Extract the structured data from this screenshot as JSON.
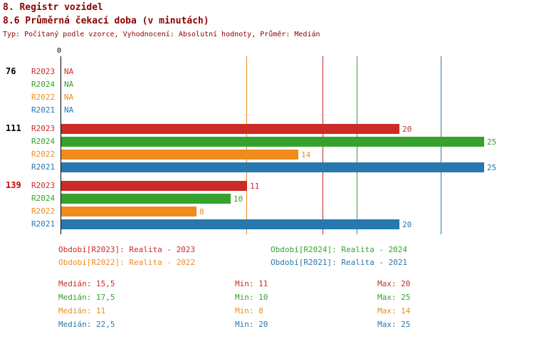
{
  "colors": {
    "title": "#8b0000",
    "axis": "#000000",
    "group_default": "#000000",
    "group_alert": "#cc0000"
  },
  "chart_data": {
    "type": "bar",
    "orientation": "horizontal",
    "title": "8. Registr vozidel",
    "subtitle": "8.6 Průměrná čekací doba (v minutách)",
    "meta": "Typ: Počítaný podle vzorce, Vyhodnocení: Absolutní hodnoty, Průměr: Medián",
    "xlim": [
      0,
      28
    ],
    "zero_tick_label": "0",
    "grid": "median-reference-lines",
    "legend_position": "bottom",
    "series": [
      {
        "id": "R2023",
        "label": "R2023",
        "color": "#cc2b28",
        "median": 15.5
      },
      {
        "id": "R2024",
        "label": "R2024",
        "color": "#36a22d",
        "median": 17.5
      },
      {
        "id": "R2022",
        "label": "R2022",
        "color": "#f08c1e",
        "median": 11
      },
      {
        "id": "R2021",
        "label": "R2021",
        "color": "#2878af",
        "median": 22.5
      }
    ],
    "groups": [
      {
        "label": "76",
        "alert": false,
        "rows": [
          {
            "series": "R2023",
            "value": null,
            "text": "NA"
          },
          {
            "series": "R2024",
            "value": null,
            "text": "NA"
          },
          {
            "series": "R2022",
            "value": null,
            "text": "NA"
          },
          {
            "series": "R2021",
            "value": null,
            "text": "NA"
          }
        ]
      },
      {
        "label": "111",
        "alert": false,
        "rows": [
          {
            "series": "R2023",
            "value": 20,
            "text": "20"
          },
          {
            "series": "R2024",
            "value": 25,
            "text": "25"
          },
          {
            "series": "R2022",
            "value": 14,
            "text": "14"
          },
          {
            "series": "R2021",
            "value": 25,
            "text": "25"
          }
        ]
      },
      {
        "label": "139",
        "alert": true,
        "rows": [
          {
            "series": "R2023",
            "value": 11,
            "text": "11"
          },
          {
            "series": "R2024",
            "value": 10,
            "text": "10"
          },
          {
            "series": "R2022",
            "value": 8,
            "text": "8"
          },
          {
            "series": "R2021",
            "value": 20,
            "text": "20"
          }
        ]
      }
    ],
    "legend_items": [
      {
        "series": "R2023",
        "col": 0,
        "row": 0,
        "text": "Období[R2023]: Realita - 2023"
      },
      {
        "series": "R2024",
        "col": 1,
        "row": 0,
        "text": "Období[R2024]: Realita - 2024"
      },
      {
        "series": "R2022",
        "col": 0,
        "row": 1,
        "text": "Období[R2022]: Realita - 2022"
      },
      {
        "series": "R2021",
        "col": 1,
        "row": 1,
        "text": "Období[R2021]: Realita - 2021"
      }
    ],
    "stats_rows": [
      {
        "series": "R2023",
        "median": "Medián: 15,5",
        "min": "Min: 11",
        "max": "Max: 20"
      },
      {
        "series": "R2024",
        "median": "Medián: 17,5",
        "min": "Min: 10",
        "max": "Max: 25"
      },
      {
        "series": "R2022",
        "median": "Medián: 11",
        "min": "Min: 8",
        "max": "Max: 14"
      },
      {
        "series": "R2021",
        "median": "Medián: 22,5",
        "min": "Min: 20",
        "max": "Max: 25"
      }
    ]
  }
}
